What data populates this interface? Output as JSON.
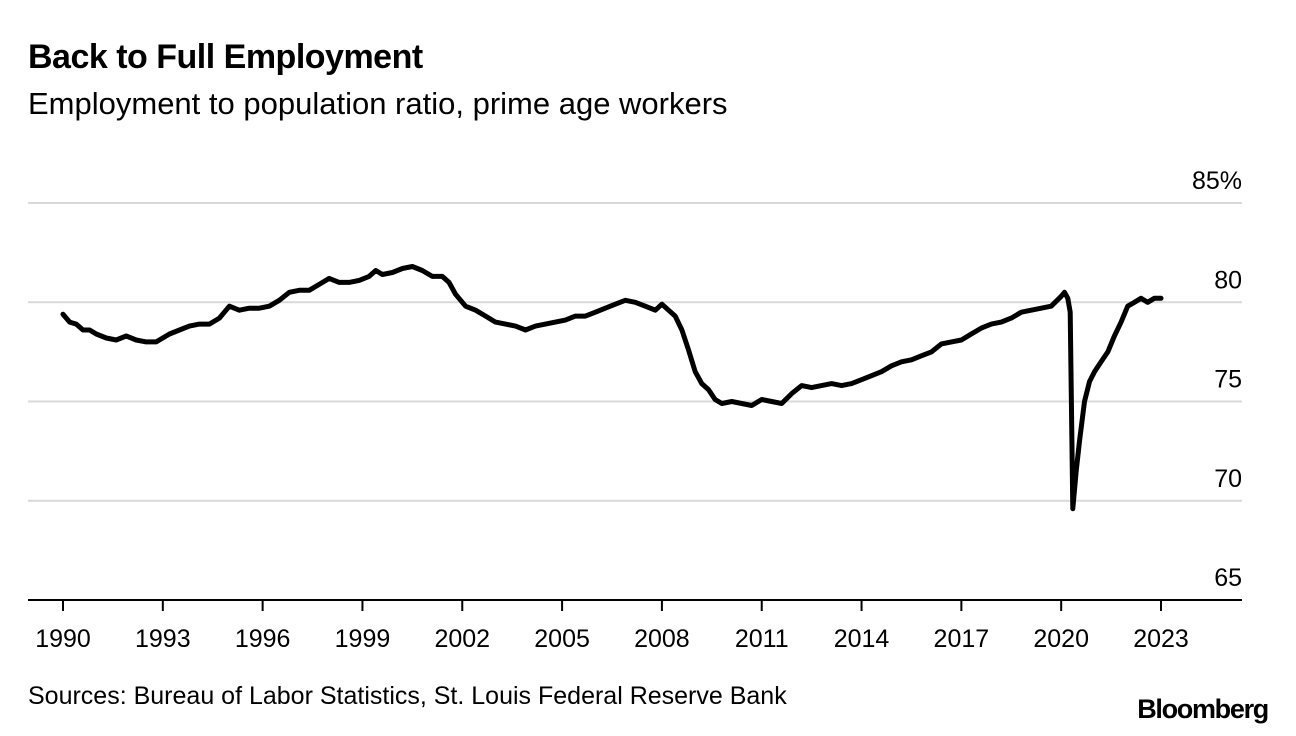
{
  "header": {
    "title": "Back to Full Employment",
    "subtitle": "Employment to population ratio, prime age workers"
  },
  "footer": {
    "source": "Sources: Bureau of Labor Statistics, St. Louis Federal Reserve Bank",
    "brand": "Bloomberg"
  },
  "chart_data": {
    "type": "line",
    "title": "Back to Full Employment",
    "subtitle": "Employment to population ratio, prime age workers",
    "xlabel": "",
    "ylabel": "",
    "xlim": [
      1989.9,
      2023.1
    ],
    "ylim": [
      65,
      85
    ],
    "x_ticks": [
      "1990",
      "1993",
      "1996",
      "1999",
      "2002",
      "2005",
      "2008",
      "2011",
      "2014",
      "2017",
      "2020",
      "2023"
    ],
    "y_ticks": [
      "65",
      "70",
      "75",
      "80",
      "85%"
    ],
    "grid": true,
    "legend": "none",
    "line_color": "#000000",
    "series": [
      {
        "x": [
          1990.0,
          1990.2,
          1990.4,
          1990.6,
          1990.8,
          1991.0,
          1991.3,
          1991.6,
          1991.9,
          1992.2,
          1992.5,
          1992.8,
          1993.2,
          1993.5,
          1993.8,
          1994.1,
          1994.4,
          1994.7,
          1995.0,
          1995.3,
          1995.6,
          1995.9,
          1996.2,
          1996.5,
          1996.8,
          1997.1,
          1997.4,
          1997.7,
          1998.0,
          1998.3,
          1998.6,
          1998.9,
          1999.2,
          1999.4,
          1999.6,
          1999.9,
          2000.2,
          2000.5,
          2000.8,
          2001.1,
          2001.4,
          2001.6,
          2001.8,
          2002.1,
          2002.4,
          2002.7,
          2003.0,
          2003.3,
          2003.6,
          2003.9,
          2004.2,
          2004.5,
          2004.8,
          2005.1,
          2005.4,
          2005.7,
          2006.0,
          2006.3,
          2006.6,
          2006.9,
          2007.2,
          2007.5,
          2007.8,
          2008.0,
          2008.2,
          2008.4,
          2008.6,
          2008.8,
          2009.0,
          2009.2,
          2009.4,
          2009.6,
          2009.8,
          2010.1,
          2010.4,
          2010.7,
          2011.0,
          2011.3,
          2011.6,
          2011.9,
          2012.2,
          2012.5,
          2012.8,
          2013.1,
          2013.4,
          2013.7,
          2014.0,
          2014.3,
          2014.6,
          2014.9,
          2015.2,
          2015.5,
          2015.8,
          2016.1,
          2016.4,
          2016.7,
          2017.0,
          2017.3,
          2017.6,
          2017.9,
          2018.2,
          2018.5,
          2018.8,
          2019.1,
          2019.4,
          2019.7,
          2020.0,
          2020.1,
          2020.2,
          2020.27,
          2020.35,
          2020.45,
          2020.55,
          2020.7,
          2020.85,
          2021.0,
          2021.2,
          2021.4,
          2021.6,
          2021.8,
          2022.0,
          2022.2,
          2022.4,
          2022.6,
          2022.8,
          2023.0
        ],
        "y": [
          79.4,
          79.0,
          78.9,
          78.6,
          78.6,
          78.4,
          78.2,
          78.1,
          78.3,
          78.1,
          78.0,
          78.0,
          78.4,
          78.6,
          78.8,
          78.9,
          78.9,
          79.2,
          79.8,
          79.6,
          79.7,
          79.7,
          79.8,
          80.1,
          80.5,
          80.6,
          80.6,
          80.9,
          81.2,
          81.0,
          81.0,
          81.1,
          81.3,
          81.6,
          81.4,
          81.5,
          81.7,
          81.8,
          81.6,
          81.3,
          81.3,
          81.0,
          80.4,
          79.8,
          79.6,
          79.3,
          79.0,
          78.9,
          78.8,
          78.6,
          78.8,
          78.9,
          79.0,
          79.1,
          79.3,
          79.3,
          79.5,
          79.7,
          79.9,
          80.1,
          80.0,
          79.8,
          79.6,
          79.9,
          79.6,
          79.3,
          78.6,
          77.6,
          76.5,
          75.9,
          75.6,
          75.1,
          74.9,
          75.0,
          74.9,
          74.8,
          75.1,
          75.0,
          74.9,
          75.4,
          75.8,
          75.7,
          75.8,
          75.9,
          75.8,
          75.9,
          76.1,
          76.3,
          76.5,
          76.8,
          77.0,
          77.1,
          77.3,
          77.5,
          77.9,
          78.0,
          78.1,
          78.4,
          78.7,
          78.9,
          79.0,
          79.2,
          79.5,
          79.6,
          79.7,
          79.8,
          80.3,
          80.5,
          80.2,
          79.5,
          69.6,
          71.5,
          73.0,
          75.0,
          76.0,
          76.5,
          77.0,
          77.5,
          78.3,
          79.0,
          79.8,
          80.0,
          80.2,
          80.0,
          80.2,
          80.2
        ]
      }
    ]
  }
}
